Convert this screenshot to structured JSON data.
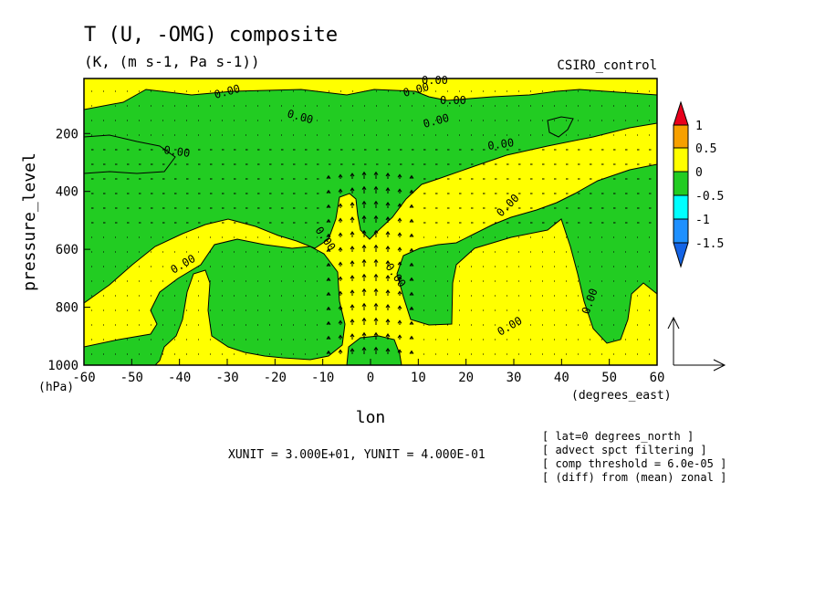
{
  "chart_data": {
    "type": "heatmap",
    "title": "T (U, -OMG) composite",
    "subtitle": "(K, (m s-1, Pa s-1))",
    "model_label": "CSIRO_control",
    "xlabel": "lon",
    "x_unit_label": "(degrees_east)",
    "ylabel": "pressure_level",
    "y_unit_label": "(hPa)",
    "xlim": [
      -60,
      60
    ],
    "ylim": [
      1000,
      10
    ],
    "y_reversed": true,
    "x_ticks": [
      "-60",
      "-50",
      "-40",
      "-30",
      "-20",
      "-10",
      "0",
      "10",
      "20",
      "30",
      "40",
      "50",
      "60"
    ],
    "y_ticks": [
      "200",
      "400",
      "600",
      "800",
      "1000"
    ],
    "contour_label": "0.00",
    "colorbar": {
      "levels": [
        "1",
        "0.5",
        "0",
        "-0.5",
        "-1",
        "-1.5"
      ],
      "colors": [
        "#e8001c",
        "#f7a000",
        "#ffff00",
        "#22cc22",
        "#00ffff",
        "#1e90ff",
        "#1464e6"
      ]
    },
    "vector_units": "XUNIT = 3.000E+01, YUNIT = 4.000E-01",
    "notes": [
      "[ lat=0 degrees_north ]",
      "[ advect spct filtering ]",
      "[ comp threshold = 6.0e-05 ]",
      "[ (diff) from (mean) zonal ]"
    ]
  }
}
